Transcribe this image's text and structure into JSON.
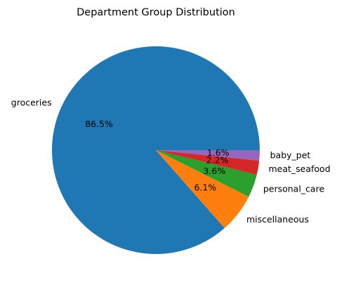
{
  "chart_data": {
    "type": "pie",
    "title": "Department Group Distribution",
    "slices": [
      {
        "label": "groceries",
        "value": 86.5,
        "pct_label": "86.5%",
        "color": "#1f77b4"
      },
      {
        "label": "miscellaneous",
        "value": 6.1,
        "pct_label": "6.1%",
        "color": "#ff7f0e"
      },
      {
        "label": "personal_care",
        "value": 3.6,
        "pct_label": "3.6%",
        "color": "#2ca02c"
      },
      {
        "label": "meat_seafood",
        "value": 2.2,
        "pct_label": "2.2%",
        "color": "#d62728"
      },
      {
        "label": "baby_pet",
        "value": 1.6,
        "pct_label": "1.6%",
        "color": "#9467bd"
      }
    ],
    "start_angle_deg": 0,
    "direction": "counterclockwise",
    "legend": "none"
  }
}
